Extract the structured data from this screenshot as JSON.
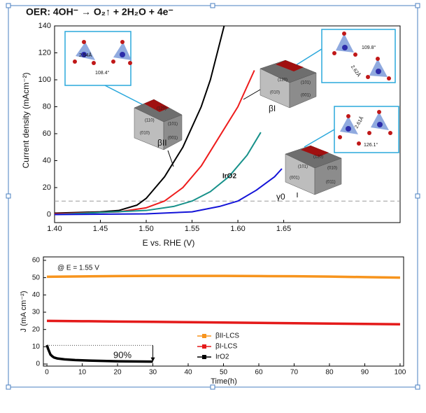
{
  "chart_data": [
    {
      "type": "line",
      "title": "OER: 4OH⁻ → O₂↑ + 2H₂O + 4e⁻",
      "x_label": "E vs. RHE (V)",
      "y_label": "Current density (mAcm⁻²)",
      "xlim": [
        1.4,
        1.777
      ],
      "ylim": [
        -6,
        140
      ],
      "xticks": [
        {
          "value": 1.4,
          "label": "1.40"
        },
        1.45,
        {
          "value": 1.5,
          "label": "1.50"
        },
        1.55,
        {
          "value": 1.6,
          "label": "1.60"
        },
        1.65
      ],
      "yticks": [
        0,
        20,
        40,
        60,
        80,
        100,
        120,
        140
      ],
      "reference_line": 10,
      "series": [
        {
          "name": "βII",
          "color": "#000000",
          "x": [
            1.4,
            1.45,
            1.47,
            1.49,
            1.5,
            1.52,
            1.54,
            1.56,
            1.57,
            1.585
          ],
          "values": [
            1,
            2,
            3,
            7,
            12,
            28,
            50,
            80,
            100,
            140
          ]
        },
        {
          "name": "βI",
          "color": "#ee1c1c",
          "x": [
            1.4,
            1.47,
            1.5,
            1.52,
            1.54,
            1.56,
            1.58,
            1.6,
            1.618
          ],
          "values": [
            0.5,
            2,
            5,
            10,
            20,
            36,
            58,
            80,
            107
          ]
        },
        {
          "name": "IrO2",
          "color": "#17918a",
          "x": [
            1.4,
            1.5,
            1.53,
            1.55,
            1.57,
            1.59,
            1.61,
            1.625
          ],
          "values": [
            0,
            3,
            6,
            10,
            17,
            28,
            44,
            61
          ]
        },
        {
          "name": "γ0",
          "color": "#1414d8",
          "x": [
            1.4,
            1.5,
            1.55,
            1.58,
            1.6,
            1.62,
            1.64,
            1.648
          ],
          "values": [
            0,
            0.5,
            2,
            6,
            10,
            18,
            28,
            34
          ]
        }
      ],
      "annotations": [
        "2.54Å",
        "108.4°",
        "109.8°",
        "2.62Å",
        "2.61Å",
        "126.1°"
      ],
      "facets": [
        [
          "(120)",
          "(110)",
          "(101)",
          "(010)",
          "(001)"
        ],
        [
          "(120)",
          "(101)",
          "(010)",
          "(001)"
        ],
        [
          "(120)",
          "(101)",
          "(010)",
          "(001)",
          "(011)"
        ]
      ]
    },
    {
      "type": "line",
      "annotation": "@ E = 1.55 V",
      "x_label": "Time(h)",
      "y_label": "J (mA cm⁻²)",
      "xlim": [
        -1,
        101
      ],
      "ylim": [
        -1.2,
        62
      ],
      "xticks": [
        0,
        10,
        20,
        30,
        40,
        50,
        60,
        70,
        80,
        90,
        100
      ],
      "yticks": [
        0,
        10,
        20,
        30,
        40,
        50,
        60
      ],
      "retention_label": "90%",
      "retention_arrow": {
        "x": 30,
        "from": 10.8,
        "to": 1.4
      },
      "series": [
        {
          "name": "βII-LCS",
          "color": "#f7941d",
          "x": [
            0,
            10,
            20,
            30,
            40,
            50,
            60,
            70,
            80,
            90,
            100
          ],
          "values": [
            50.5,
            50.7,
            50.9,
            51,
            51,
            51,
            50.9,
            50.8,
            50.6,
            50.3,
            50
          ]
        },
        {
          "name": "βI-LCS",
          "color": "#e41a1a",
          "x": [
            0,
            10,
            20,
            30,
            40,
            50,
            60,
            70,
            80,
            90,
            100
          ],
          "values": [
            25,
            24.8,
            24.6,
            24.4,
            24.2,
            24,
            23.8,
            23.6,
            23.4,
            23.2,
            23
          ]
        },
        {
          "name": "IrO2",
          "color": "#000000",
          "x": [
            0,
            0.3,
            0.7,
            1,
            1.5,
            2,
            3,
            5,
            8,
            12,
            16,
            20,
            25,
            30
          ],
          "values": [
            11,
            9,
            7,
            5.5,
            4.5,
            3.8,
            3.2,
            2.7,
            2.3,
            2,
            1.8,
            1.6,
            1.5,
            1.4
          ]
        }
      ]
    }
  ]
}
